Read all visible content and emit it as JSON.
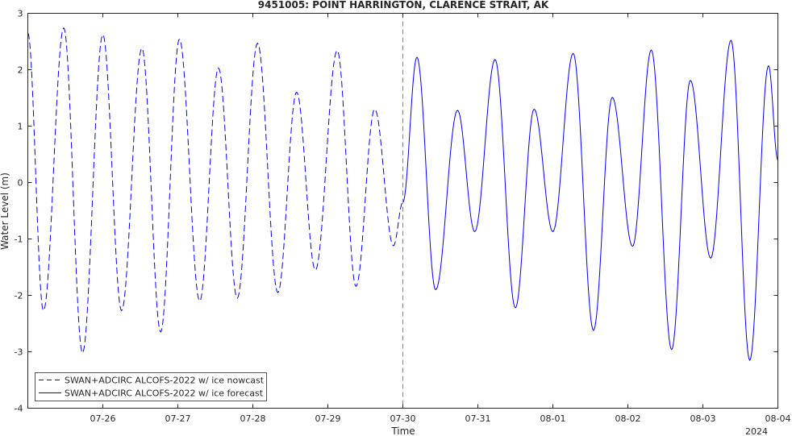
{
  "chart_data": {
    "type": "line",
    "title": "9451005: POINT HARRINGTON, CLARENCE STRAIT, AK",
    "xlabel": "Time",
    "ylabel": "Water Level (m)",
    "year_label": "2024",
    "x_range": [
      "2024-07-25T00:00",
      "2024-08-04T00:00"
    ],
    "ylim": [
      -4,
      3
    ],
    "y_ticks": [
      -4,
      -3,
      -2,
      -1,
      0,
      1,
      2,
      3
    ],
    "x_ticks": [
      {
        "date": "2024-07-26",
        "label": "07-26"
      },
      {
        "date": "2024-07-27",
        "label": "07-27"
      },
      {
        "date": "2024-07-28",
        "label": "07-28"
      },
      {
        "date": "2024-07-29",
        "label": "07-29"
      },
      {
        "date": "2024-07-30",
        "label": "07-30"
      },
      {
        "date": "2024-07-31",
        "label": "07-31"
      },
      {
        "date": "2024-08-01",
        "label": "08-01"
      },
      {
        "date": "2024-08-02",
        "label": "08-02"
      },
      {
        "date": "2024-08-03",
        "label": "08-03"
      },
      {
        "date": "2024-08-04",
        "label": "08-04"
      }
    ],
    "grid": false,
    "legend_position": "bottom-left",
    "divider": {
      "date": "2024-07-30T00:00",
      "style": "dashed"
    },
    "series": [
      {
        "name": "SWAN+ADCIRC ALCOFS-2022 w/ ice nowcast",
        "style": "dashed",
        "color": "#0000ff",
        "extrema": [
          [
            "2024-07-25T00:00",
            2.65
          ],
          [
            "2024-07-25T05:00",
            -2.27
          ],
          [
            "2024-07-25T11:30",
            2.74
          ],
          [
            "2024-07-25T17:30",
            -3.02
          ],
          [
            "2024-07-26T00:00",
            2.62
          ],
          [
            "2024-07-26T06:00",
            -2.27
          ],
          [
            "2024-07-26T12:30",
            2.38
          ],
          [
            "2024-07-26T18:30",
            -2.65
          ],
          [
            "2024-07-27T00:30",
            2.54
          ],
          [
            "2024-07-27T07:00",
            -2.1
          ],
          [
            "2024-07-27T13:00",
            2.03
          ],
          [
            "2024-07-27T19:00",
            -2.05
          ],
          [
            "2024-07-28T01:30",
            2.47
          ],
          [
            "2024-07-28T08:00",
            -1.95
          ],
          [
            "2024-07-28T14:00",
            1.6
          ],
          [
            "2024-07-28T20:00",
            -1.55
          ],
          [
            "2024-07-29T03:00",
            2.34
          ],
          [
            "2024-07-29T09:00",
            -1.84
          ],
          [
            "2024-07-29T15:00",
            1.3
          ],
          [
            "2024-07-29T21:00",
            -1.12
          ],
          [
            "2024-07-30T00:00",
            -0.35
          ]
        ]
      },
      {
        "name": "SWAN+ADCIRC ALCOFS-2022 w/ ice forecast",
        "style": "solid",
        "color": "#0000ff",
        "extrema": [
          [
            "2024-07-30T00:00",
            -0.35
          ],
          [
            "2024-07-30T04:30",
            2.22
          ],
          [
            "2024-07-30T10:30",
            -1.9
          ],
          [
            "2024-07-30T17:30",
            1.28
          ],
          [
            "2024-07-30T23:00",
            -0.87
          ],
          [
            "2024-07-31T05:30",
            2.18
          ],
          [
            "2024-07-31T12:00",
            -2.22
          ],
          [
            "2024-07-31T18:00",
            1.3
          ],
          [
            "2024-08-01T00:00",
            -0.87
          ],
          [
            "2024-08-01T06:30",
            2.29
          ],
          [
            "2024-08-01T13:00",
            -2.62
          ],
          [
            "2024-08-01T19:00",
            1.51
          ],
          [
            "2024-08-02T01:30",
            -1.13
          ],
          [
            "2024-08-02T07:30",
            2.35
          ],
          [
            "2024-08-02T14:00",
            -2.96
          ],
          [
            "2024-08-02T20:00",
            1.81
          ],
          [
            "2024-08-03T02:30",
            -1.34
          ],
          [
            "2024-08-03T09:00",
            2.52
          ],
          [
            "2024-08-03T15:00",
            -3.15
          ],
          [
            "2024-08-03T21:00",
            2.07
          ],
          [
            "2024-08-04T00:00",
            0.4
          ]
        ]
      }
    ]
  }
}
